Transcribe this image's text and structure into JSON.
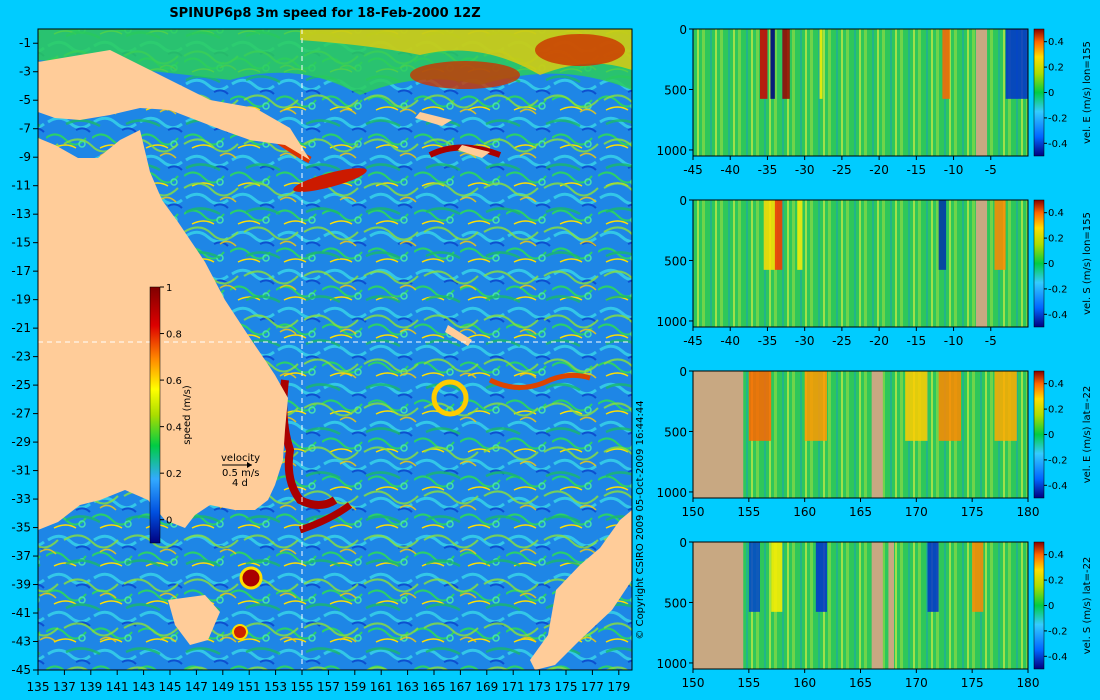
{
  "chart_data": [
    {
      "type": "heatmap",
      "title": "SPINUP6p8 3m speed for 18-Feb-2000 12Z",
      "colorbar_label": "speed (m/s)",
      "colorbar_ticks": [
        "0",
        "0.2",
        "0.4",
        "0.6",
        "0.8",
        "1"
      ],
      "clim": [
        -0.1,
        1
      ],
      "x_ticks": [
        "135",
        "137",
        "139",
        "141",
        "143",
        "145",
        "147",
        "149",
        "151",
        "153",
        "155",
        "157",
        "159",
        "161",
        "163",
        "165",
        "167",
        "169",
        "171",
        "173",
        "175",
        "177",
        "179"
      ],
      "y_ticks": [
        "-1",
        "-3",
        "-5",
        "-7",
        "-9",
        "-11",
        "-13",
        "-15",
        "-17",
        "-19",
        "-21",
        "-23",
        "-25",
        "-27",
        "-29",
        "-31",
        "-33",
        "-35",
        "-37",
        "-39",
        "-41",
        "-43",
        "-45"
      ],
      "xlim": [
        135,
        180
      ],
      "ylim": [
        -45,
        0
      ],
      "crosshair": {
        "lon": 155,
        "lat": -22
      },
      "velocity_key": {
        "label": "velocity",
        "speed": "0.5 m/s",
        "days": "4 d"
      },
      "copyright": "© Copyright CSIRO 2009   05-Oct-2009 16:44:44"
    },
    {
      "type": "heatmap",
      "ylabel": "vel. E (m/s) lon=155",
      "x_ticks": [
        "-45",
        "-40",
        "-35",
        "-30",
        "-25",
        "-20",
        "-15",
        "-10",
        "-5"
      ],
      "y_ticks": [
        "0",
        "500",
        "1000"
      ],
      "colorbar_ticks": [
        "0.4",
        "0.2",
        "0",
        "-0.2",
        "-0.4"
      ],
      "xlim": [
        -45,
        0
      ],
      "ylim": [
        1050,
        0
      ]
    },
    {
      "type": "heatmap",
      "ylabel": "vel. S (m/s) lon=155",
      "x_ticks": [
        "-45",
        "-40",
        "-35",
        "-30",
        "-25",
        "-20",
        "-15",
        "-10",
        "-5"
      ],
      "y_ticks": [
        "0",
        "500",
        "1000"
      ],
      "colorbar_ticks": [
        "0.4",
        "0.2",
        "0",
        "-0.2",
        "-0.4"
      ],
      "xlim": [
        -45,
        0
      ],
      "ylim": [
        1050,
        0
      ]
    },
    {
      "type": "heatmap",
      "ylabel": "vel. E (m/s) lat=-22",
      "x_ticks": [
        "150",
        "155",
        "160",
        "165",
        "170",
        "175",
        "180"
      ],
      "y_ticks": [
        "0",
        "500",
        "1000"
      ],
      "colorbar_ticks": [
        "0.4",
        "0.2",
        "0",
        "-0.2",
        "-0.4"
      ],
      "xlim": [
        150,
        180
      ],
      "ylim": [
        1050,
        0
      ]
    },
    {
      "type": "heatmap",
      "ylabel": "vel. S (m/s) lat=-22",
      "x_ticks": [
        "150",
        "155",
        "160",
        "165",
        "170",
        "175",
        "180"
      ],
      "y_ticks": [
        "0",
        "500",
        "1000"
      ],
      "colorbar_ticks": [
        "0.4",
        "0.2",
        "0",
        "-0.2",
        "-0.4"
      ],
      "xlim": [
        150,
        180
      ],
      "ylim": [
        1050,
        0
      ]
    }
  ],
  "colors": {
    "background": "#00ccff",
    "land": "#ffcc99",
    "bathy": "#c8a882",
    "colormap": [
      "#000080",
      "#0050e0",
      "#33aaff",
      "#00cc44",
      "#aadd00",
      "#ffff00",
      "#ff8800",
      "#dd0000",
      "#800000"
    ]
  }
}
